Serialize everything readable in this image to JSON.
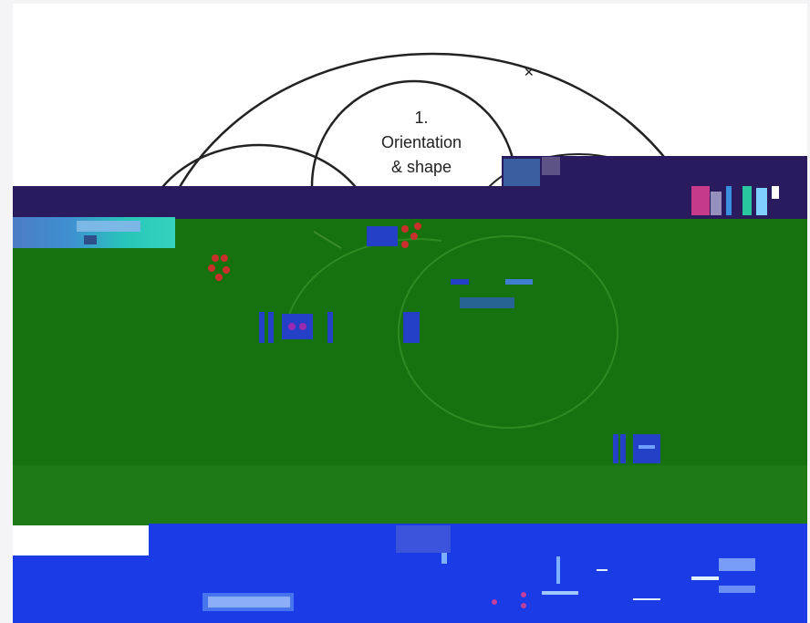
{
  "diagram": {
    "circle_label_line1": "1.",
    "circle_label_line2": "Orientation",
    "circle_label_line3": "& shape"
  },
  "colors": {
    "navy": "#2a1a5e",
    "green": "#1e7a14",
    "blue": "#1a3be6",
    "teal": "#35d2be",
    "outline": "#222222"
  }
}
